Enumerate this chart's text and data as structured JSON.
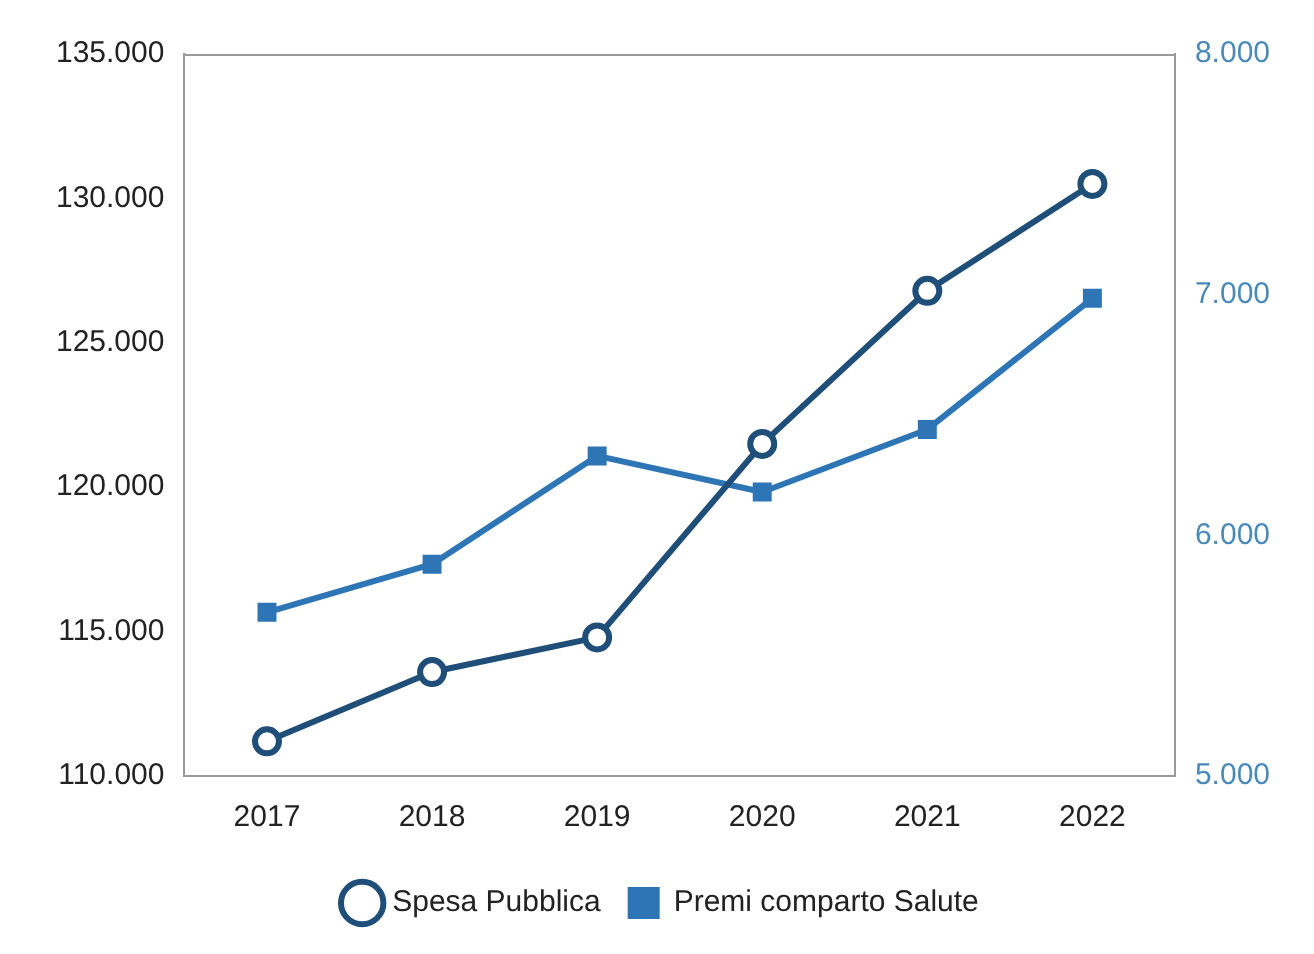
{
  "chart_data": {
    "type": "line",
    "categories": [
      "2017",
      "2018",
      "2019",
      "2020",
      "2021",
      "2022"
    ],
    "series": [
      {
        "name": "Spesa Pubblica",
        "color": "#1f4e79",
        "marker": "circle",
        "values": [
          111200,
          113600,
          114800,
          121500,
          126800,
          130500
        ]
      },
      {
        "name": "Premi comparto Salute",
        "color": "#2e75b6",
        "marker": "square",
        "axis": "y2",
        "values": [
          5680,
          5880,
          6330,
          6180,
          6440,
          6985
        ]
      }
    ],
    "ylim": [
      110000,
      135000
    ],
    "yticks": [
      {
        "value": 110000,
        "label": "110.000"
      },
      {
        "value": 115000,
        "label": "115.000"
      },
      {
        "value": 120000,
        "label": "120.000"
      },
      {
        "value": 125000,
        "label": "125.000"
      },
      {
        "value": 130000,
        "label": "130.000"
      },
      {
        "value": 135000,
        "label": "135.000"
      }
    ],
    "y2lim": [
      5000,
      8000
    ],
    "y2ticks": [
      {
        "value": 5000,
        "label": "5.000"
      },
      {
        "value": 6000,
        "label": "6.000"
      },
      {
        "value": 7000,
        "label": "7.000"
      },
      {
        "value": 8000,
        "label": "8.000"
      }
    ],
    "grid": false,
    "legend": "bottom",
    "line_style": "solid"
  }
}
